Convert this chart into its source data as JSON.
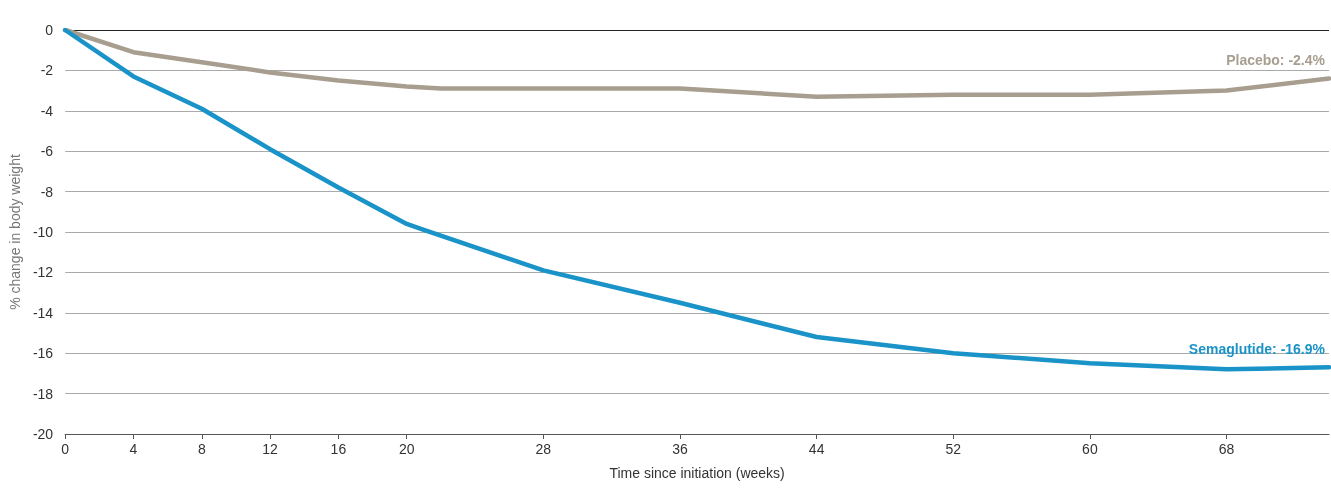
{
  "chart_data": {
    "type": "line",
    "xlabel": "Time since initiation (weeks)",
    "ylabel": "% change in body weight",
    "xlim": [
      0,
      74
    ],
    "xticks": [
      0,
      4,
      8,
      12,
      16,
      20,
      28,
      36,
      44,
      52,
      60,
      68
    ],
    "ylim": [
      -20,
      0
    ],
    "yticks": [
      -20,
      -18,
      -16,
      -14,
      -12,
      -10,
      -8,
      -6,
      -4,
      -2,
      0
    ],
    "grid": "y",
    "marker": "none",
    "line_style": "solid",
    "legend": false,
    "ref_lines": [
      {
        "axis": "y",
        "value": 0,
        "color": "#222222"
      }
    ],
    "series": [
      {
        "name": "Placebo: -2.4%",
        "color": "#a89e90",
        "x": [
          0,
          4,
          8,
          12,
          16,
          20,
          22,
          36,
          44,
          52,
          60,
          68,
          74
        ],
        "values": [
          0,
          -1.1,
          -1.6,
          -2.1,
          -2.5,
          -2.8,
          -2.9,
          -2.9,
          -3.3,
          -3.2,
          -3.2,
          -3.0,
          -2.4
        ]
      },
      {
        "name": "Semaglutide: -16.9%",
        "color": "#1a93c8",
        "x": [
          0,
          4,
          8,
          12,
          16,
          20,
          21,
          28,
          36,
          44,
          52,
          60,
          68,
          74
        ],
        "values": [
          0,
          -2.3,
          -3.9,
          -5.9,
          -7.8,
          -9.6,
          -9.9,
          -11.9,
          -13.5,
          -15.2,
          -16.0,
          -16.5,
          -16.8,
          -16.7
        ]
      }
    ]
  }
}
